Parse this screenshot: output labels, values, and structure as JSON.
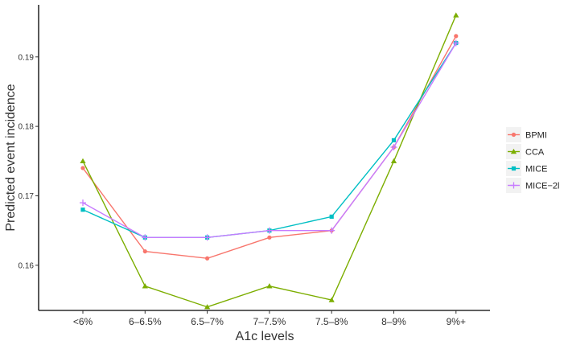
{
  "chart_data": {
    "type": "line",
    "title": "",
    "xlabel": "A1c levels",
    "ylabel": "Predicted event incidence",
    "categories": [
      "<6%",
      "6–6.5%",
      "6.5–7%",
      "7–7.5%",
      "7.5–8%",
      "8–9%",
      "9%+"
    ],
    "ylim": [
      0.1535,
      0.1975
    ],
    "yticks": [
      0.16,
      0.17,
      0.18,
      0.19
    ],
    "ytick_labels": [
      "0.16",
      "0.17",
      "0.18",
      "0.19"
    ],
    "grid": false,
    "legend_position": "right",
    "series": [
      {
        "name": "BPMI",
        "color": "#F8766D",
        "marker": "circle",
        "values": [
          0.174,
          0.162,
          0.161,
          0.164,
          0.165,
          0.177,
          0.193
        ]
      },
      {
        "name": "CCA",
        "color": "#7CAE00",
        "marker": "triangle",
        "values": [
          0.175,
          0.157,
          0.154,
          0.157,
          0.155,
          0.175,
          0.196
        ]
      },
      {
        "name": "MICE",
        "color": "#00BFC4",
        "marker": "square",
        "values": [
          0.168,
          0.164,
          0.164,
          0.165,
          0.167,
          0.178,
          0.192
        ]
      },
      {
        "name": "MICE−2l",
        "color": "#C77CFF",
        "marker": "plus",
        "values": [
          0.169,
          0.164,
          0.164,
          0.165,
          0.165,
          0.177,
          0.192
        ]
      }
    ]
  }
}
